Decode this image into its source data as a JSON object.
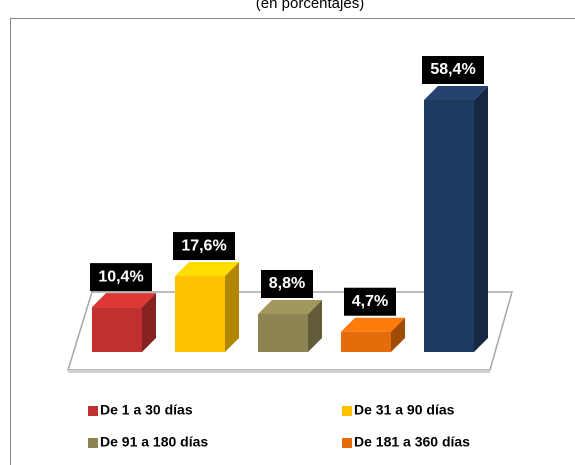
{
  "chart_data": {
    "type": "bar3d",
    "title": "(en porcentajes)",
    "categories": [
      "De 1 a 30 días",
      "De 31 a 90 días",
      "De 91 a 180 días",
      "De 181 a 360 días",
      null
    ],
    "values": [
      10.4,
      17.6,
      8.8,
      4.7,
      58.4
    ],
    "value_labels": [
      "10,4%",
      "17,6%",
      "8,8%",
      "4,7%",
      "58,4%"
    ],
    "colors": [
      "#c0302e",
      "#ffc000",
      "#8c8452",
      "#e46c0a",
      "#1f3a60"
    ]
  }
}
